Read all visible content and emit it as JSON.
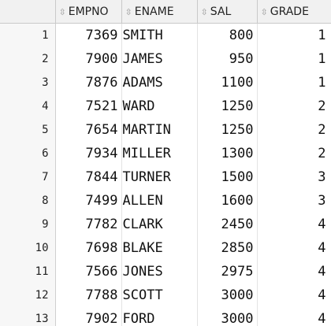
{
  "columns": [
    "EMPNO",
    "ENAME",
    "SAL",
    "GRADE"
  ],
  "rows": [
    {
      "n": "1",
      "empno": "7369",
      "ename": "SMITH",
      "sal": "800",
      "grade": "1"
    },
    {
      "n": "2",
      "empno": "7900",
      "ename": "JAMES",
      "sal": "950",
      "grade": "1"
    },
    {
      "n": "3",
      "empno": "7876",
      "ename": "ADAMS",
      "sal": "1100",
      "grade": "1"
    },
    {
      "n": "4",
      "empno": "7521",
      "ename": "WARD",
      "sal": "1250",
      "grade": "2"
    },
    {
      "n": "5",
      "empno": "7654",
      "ename": "MARTIN",
      "sal": "1250",
      "grade": "2"
    },
    {
      "n": "6",
      "empno": "7934",
      "ename": "MILLER",
      "sal": "1300",
      "grade": "2"
    },
    {
      "n": "7",
      "empno": "7844",
      "ename": "TURNER",
      "sal": "1500",
      "grade": "3"
    },
    {
      "n": "8",
      "empno": "7499",
      "ename": "ALLEN",
      "sal": "1600",
      "grade": "3"
    },
    {
      "n": "9",
      "empno": "7782",
      "ename": "CLARK",
      "sal": "2450",
      "grade": "4"
    },
    {
      "n": "10",
      "empno": "7698",
      "ename": "BLAKE",
      "sal": "2850",
      "grade": "4"
    },
    {
      "n": "11",
      "empno": "7566",
      "ename": "JONES",
      "sal": "2975",
      "grade": "4"
    },
    {
      "n": "12",
      "empno": "7788",
      "ename": "SCOTT",
      "sal": "3000",
      "grade": "4"
    },
    {
      "n": "13",
      "empno": "7902",
      "ename": "FORD",
      "sal": "3000",
      "grade": "4"
    }
  ],
  "icons": {
    "sort": "sort-arrows-icon"
  }
}
